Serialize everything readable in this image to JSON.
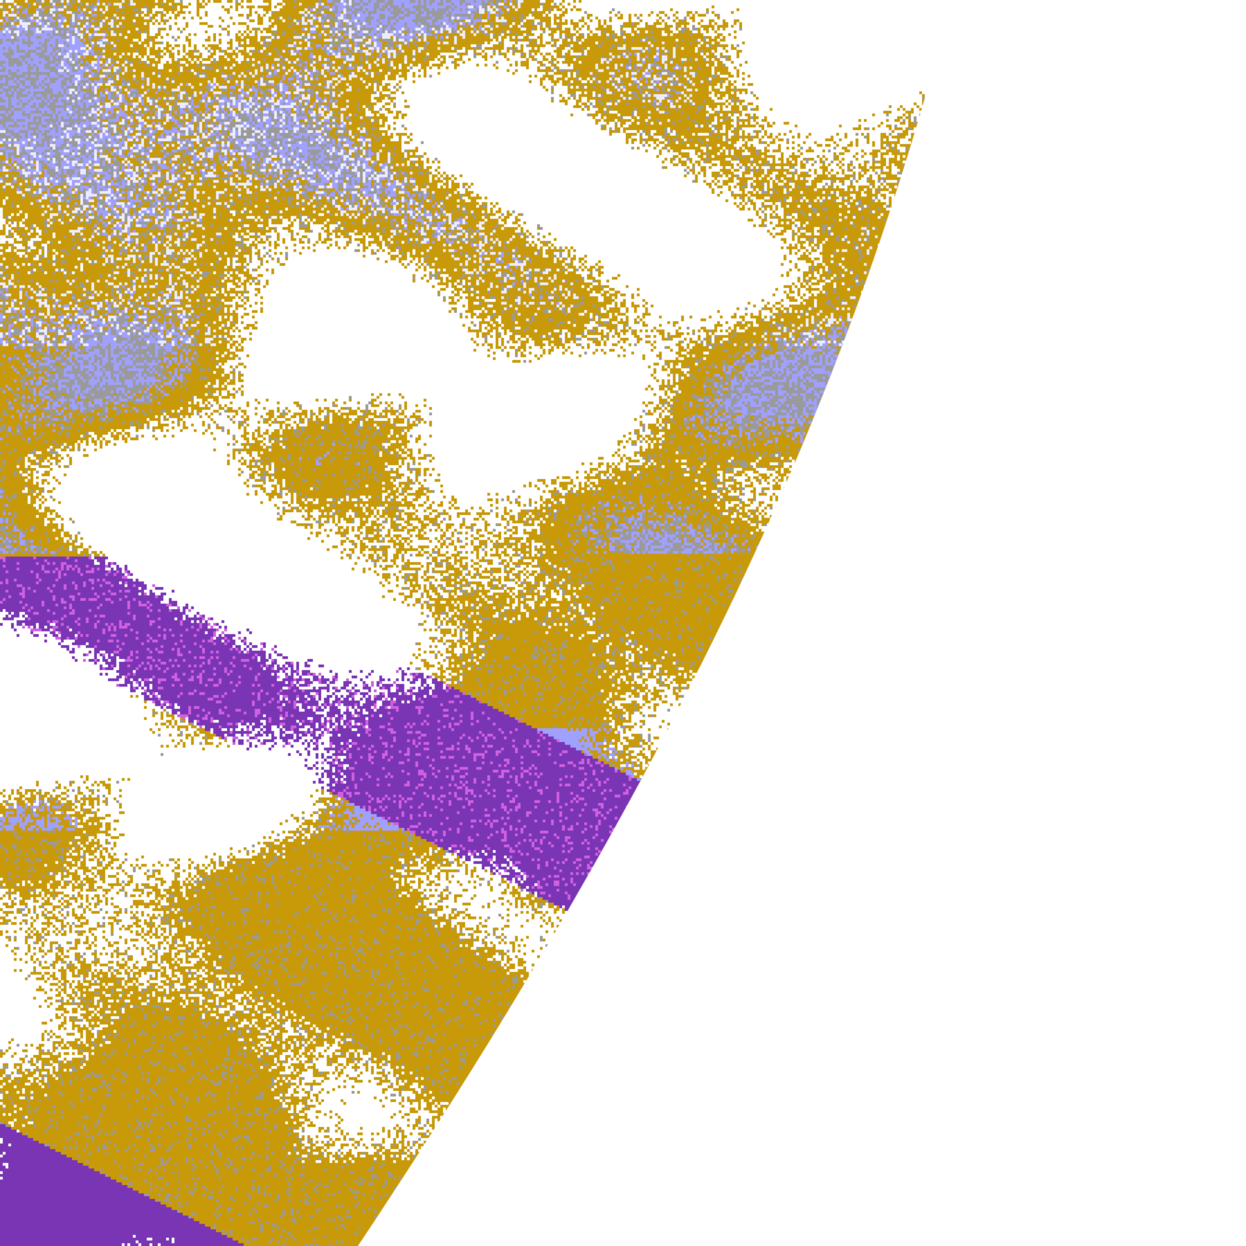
{
  "map": {
    "type": "satellite cloud-type classification",
    "background": "#ffffff",
    "classes": [
      {
        "name": "clear",
        "color": "#ffffff"
      },
      {
        "name": "low-cloud",
        "color": "#c89a0a"
      },
      {
        "name": "mid-cloud-gray",
        "color": "#9a9a9a"
      },
      {
        "name": "high-cloud-lavender",
        "color": "#a0a0ff"
      },
      {
        "name": "very-high-cloud",
        "color": "#ececff"
      },
      {
        "name": "deep-convective",
        "color": "#7a35b5"
      },
      {
        "name": "magenta",
        "color": "#d060e0"
      }
    ]
  }
}
